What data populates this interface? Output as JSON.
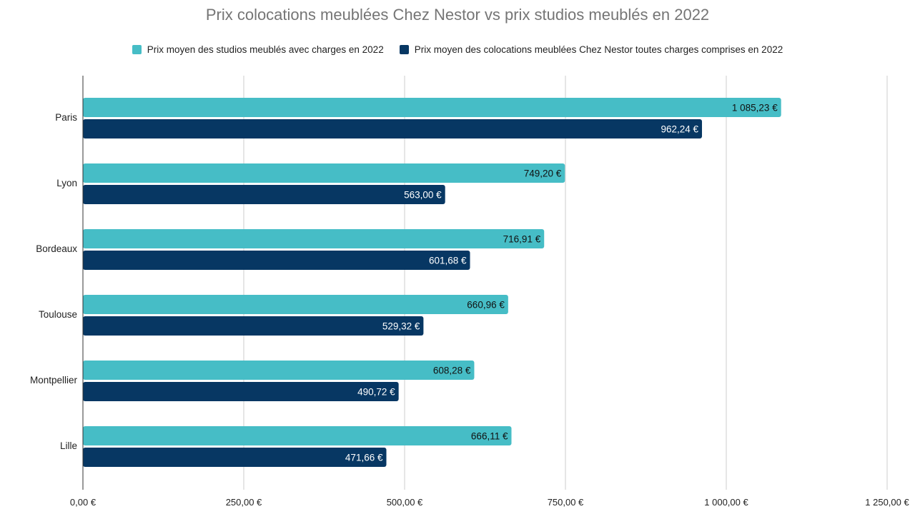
{
  "chart_data": {
    "type": "bar",
    "orientation": "horizontal",
    "title": "Prix colocations meublées Chez Nestor vs prix studios meublés en 2022",
    "categories": [
      "Paris",
      "Lyon",
      "Bordeaux",
      "Toulouse",
      "Montpellier",
      "Lille"
    ],
    "series": [
      {
        "name": "Prix moyen des studios meublés avec charges en 2022",
        "color": "#46BDC6",
        "values": [
          1085.23,
          749.2,
          716.91,
          660.96,
          608.28,
          666.11
        ],
        "labels": [
          "1 085,23 €",
          "749,20 €",
          "716,91 €",
          "660,96 €",
          "608,28 €",
          "666,11 €"
        ]
      },
      {
        "name": "Prix moyen des colocations meublées Chez Nestor toutes charges comprises en 2022",
        "color": "#073763",
        "values": [
          962.24,
          563.0,
          601.68,
          529.32,
          490.72,
          471.66
        ],
        "labels": [
          "962,24 €",
          "563,00 €",
          "601,68 €",
          "529,32 €",
          "490,72 €",
          "471,66 €"
        ]
      }
    ],
    "xlim": [
      0,
      1250
    ],
    "xticks": [
      0,
      250,
      500,
      750,
      1000,
      1250
    ],
    "xtick_labels": [
      "0,00 €",
      "250,00 €",
      "500,00 €",
      "750,00 €",
      "1 000,00 €",
      "1 250,00 €"
    ],
    "grid": true,
    "legend_position": "top"
  }
}
